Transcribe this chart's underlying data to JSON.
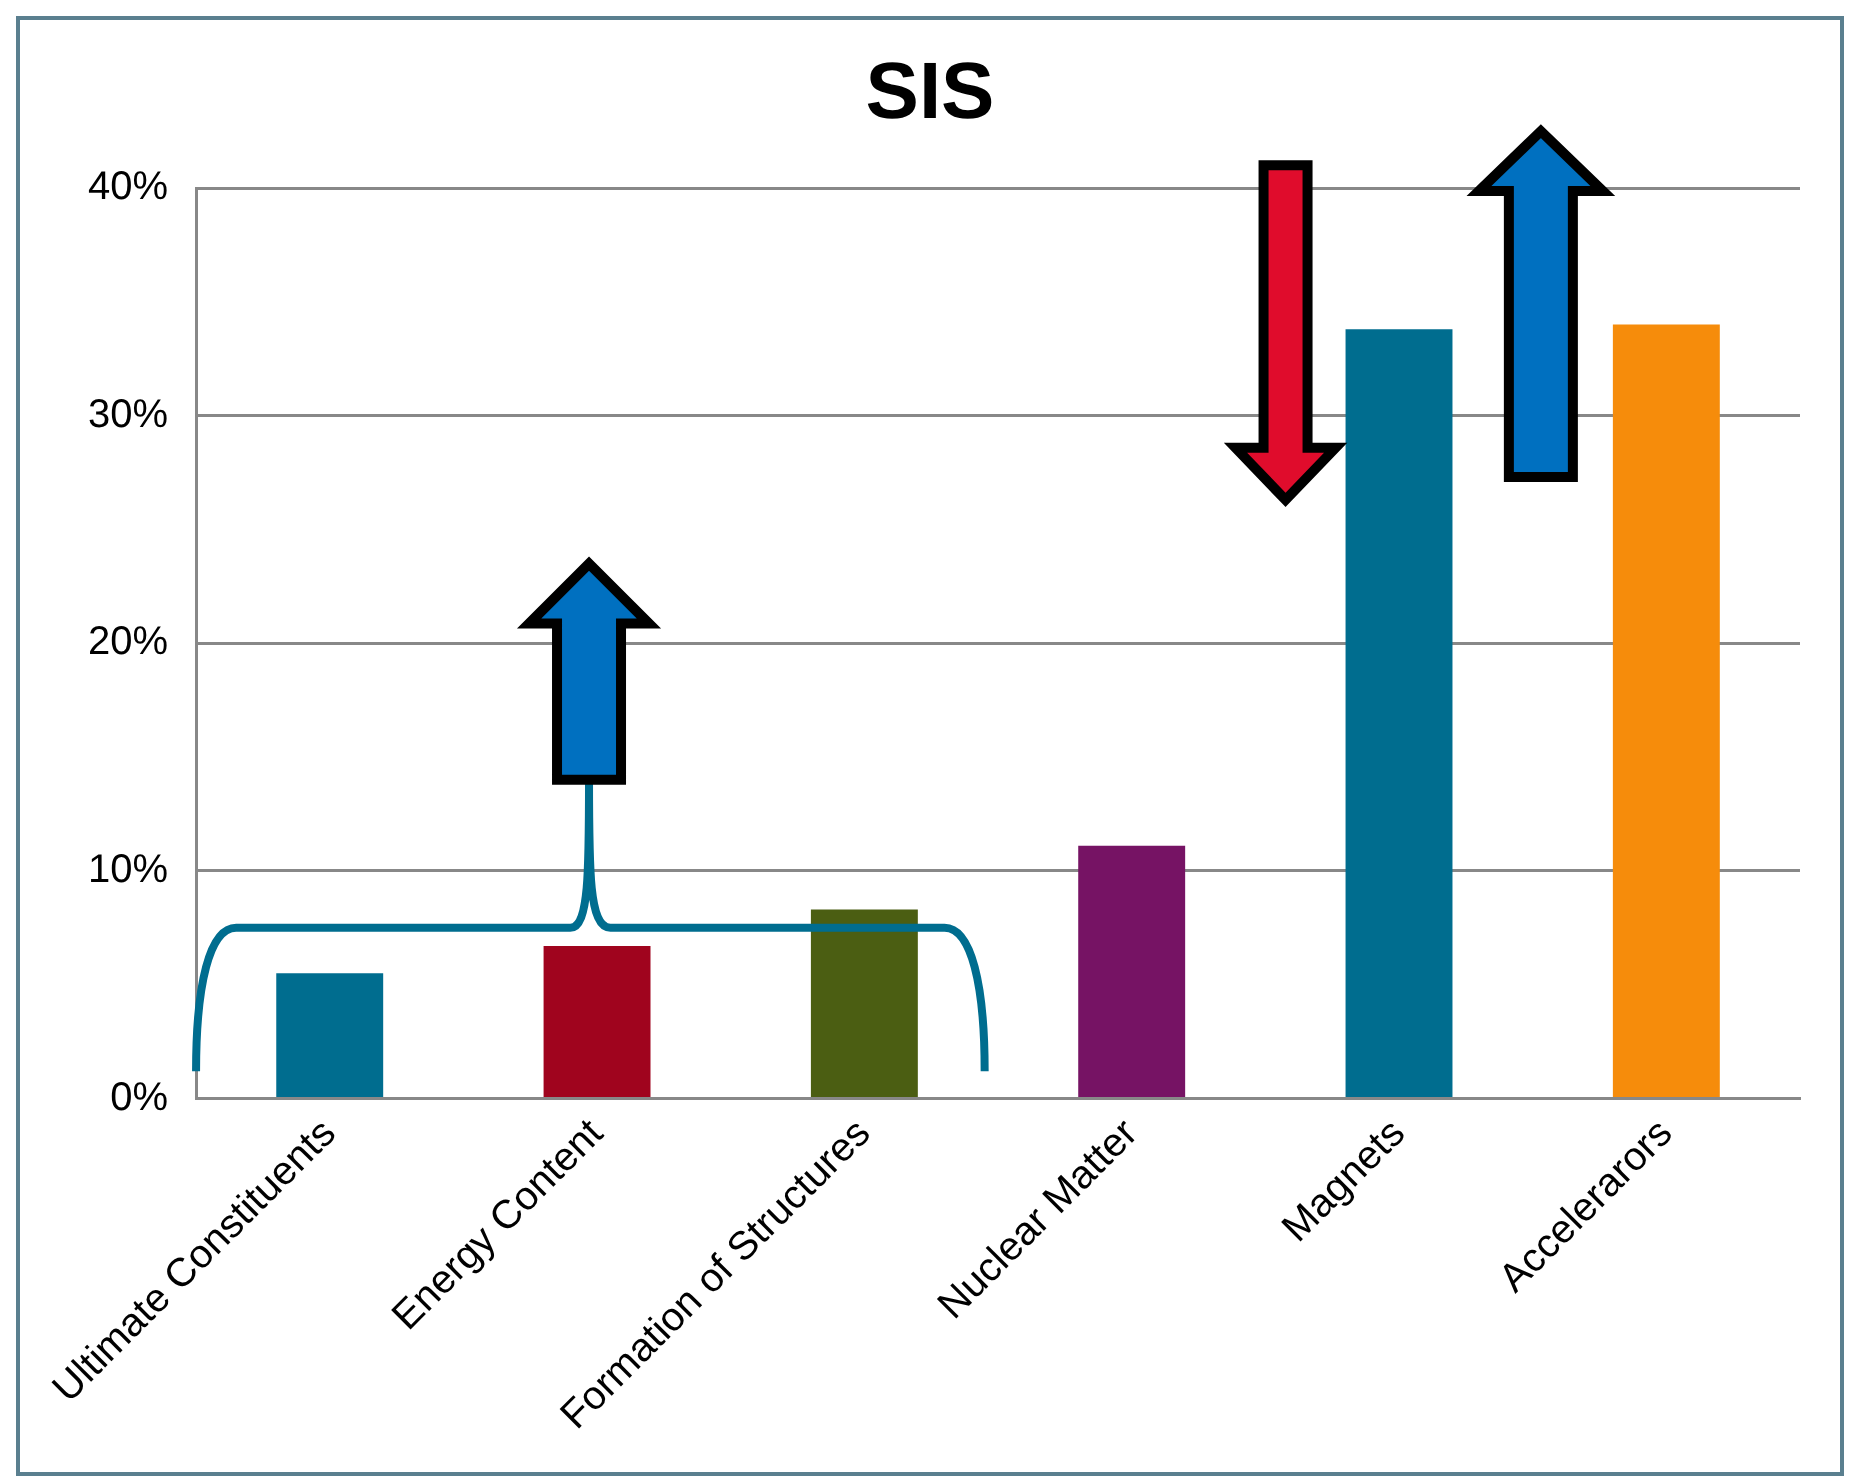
{
  "chart_data": {
    "type": "bar",
    "title": "SIS",
    "categories": [
      "Ultimate Constituents",
      "Energy Content",
      "Formation of Structures",
      "Nuclear Matter",
      "Magnets",
      "Accelerarors"
    ],
    "values": [
      5.5,
      6.7,
      8.3,
      11.1,
      33.8,
      34.0
    ],
    "colors": [
      "#006d8f",
      "#a0041e",
      "#4b5e12",
      "#761364",
      "#006d8f",
      "#f68c0b"
    ],
    "ylim": [
      0,
      40
    ],
    "yticks": [
      {
        "value": 0,
        "label": "0%"
      },
      {
        "value": 10,
        "label": "10%"
      },
      {
        "value": 20,
        "label": "20%"
      },
      {
        "value": 30,
        "label": "30%"
      },
      {
        "value": 40,
        "label": "40%"
      }
    ],
    "grid": "y"
  }
}
